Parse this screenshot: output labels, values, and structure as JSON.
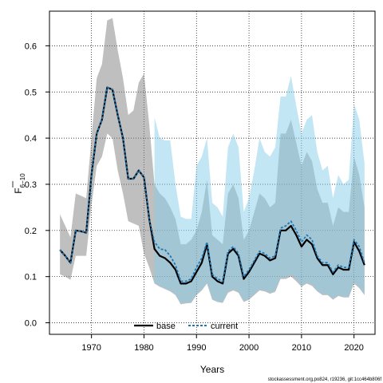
{
  "chart_data": {
    "type": "line",
    "xlabel": "Years",
    "ylabel_main": "F",
    "ylabel_sub": "6−10",
    "xlim": [
      1962,
      2024
    ],
    "ylim": [
      -0.025,
      0.675
    ],
    "x_ticks": [
      1970,
      1980,
      1990,
      2000,
      2010,
      2020
    ],
    "y_ticks": [
      0.0,
      0.1,
      0.2,
      0.3,
      0.4,
      0.5,
      0.6
    ],
    "grid": true,
    "legend": {
      "placement": "bottom-center"
    },
    "footer": "stockassessment.org,po824, r19236, git:1cc464b806f",
    "colors": {
      "base": "#000000",
      "current": "#1f78b4",
      "base_band": "#808080",
      "current_band": "#87ceeb"
    },
    "series": [
      {
        "name": "base",
        "x": [
          1964,
          1965,
          1966,
          1967,
          1968,
          1969,
          1970,
          1971,
          1972,
          1973,
          1974,
          1975,
          1976,
          1977,
          1978,
          1979,
          1980,
          1981,
          1982,
          1983,
          1984,
          1985,
          1986,
          1987,
          1988,
          1989,
          1990,
          1991,
          1992,
          1993,
          1994,
          1995,
          1996,
          1997,
          1998,
          1999,
          2000,
          2001,
          2002,
          2003,
          2004,
          2005,
          2006,
          2007,
          2008,
          2009,
          2010,
          2011,
          2012,
          2013,
          2014,
          2015,
          2016,
          2017,
          2018,
          2019,
          2020,
          2021,
          2022
        ],
        "y": [
          0.158,
          0.145,
          0.13,
          0.2,
          0.198,
          0.195,
          0.32,
          0.41,
          0.44,
          0.51,
          0.505,
          0.45,
          0.4,
          0.312,
          0.312,
          0.33,
          0.315,
          0.225,
          0.16,
          0.145,
          0.14,
          0.13,
          0.115,
          0.085,
          0.085,
          0.09,
          0.11,
          0.13,
          0.17,
          0.1,
          0.09,
          0.085,
          0.15,
          0.16,
          0.145,
          0.095,
          0.11,
          0.13,
          0.15,
          0.145,
          0.135,
          0.14,
          0.2,
          0.2,
          0.21,
          0.19,
          0.165,
          0.18,
          0.17,
          0.14,
          0.125,
          0.125,
          0.105,
          0.12,
          0.115,
          0.115,
          0.175,
          0.155,
          0.125
        ],
        "lower": [
          0.105,
          0.1,
          0.093,
          0.145,
          0.145,
          0.145,
          0.255,
          0.34,
          0.36,
          0.41,
          0.4,
          0.33,
          0.28,
          0.22,
          0.215,
          0.21,
          0.15,
          0.12,
          0.085,
          0.078,
          0.073,
          0.068,
          0.06,
          0.04,
          0.042,
          0.043,
          0.06,
          0.07,
          0.085,
          0.05,
          0.045,
          0.043,
          0.065,
          0.07,
          0.065,
          0.045,
          0.05,
          0.06,
          0.07,
          0.068,
          0.063,
          0.067,
          0.095,
          0.095,
          0.1,
          0.09,
          0.078,
          0.085,
          0.08,
          0.068,
          0.06,
          0.06,
          0.05,
          0.058,
          0.055,
          0.055,
          0.085,
          0.075,
          0.06
        ],
        "upper": [
          0.235,
          0.21,
          0.185,
          0.28,
          0.275,
          0.27,
          0.4,
          0.53,
          0.56,
          0.655,
          0.66,
          0.59,
          0.53,
          0.45,
          0.46,
          0.52,
          0.54,
          0.43,
          0.3,
          0.28,
          0.27,
          0.25,
          0.225,
          0.17,
          0.17,
          0.18,
          0.2,
          0.24,
          0.31,
          0.19,
          0.18,
          0.17,
          0.28,
          0.3,
          0.27,
          0.18,
          0.2,
          0.24,
          0.28,
          0.27,
          0.25,
          0.26,
          0.41,
          0.41,
          0.44,
          0.39,
          0.34,
          0.37,
          0.35,
          0.29,
          0.26,
          0.26,
          0.21,
          0.25,
          0.24,
          0.24,
          0.36,
          0.32,
          0.25
        ]
      },
      {
        "name": "current",
        "x": [
          1964,
          1965,
          1966,
          1967,
          1968,
          1969,
          1970,
          1971,
          1972,
          1973,
          1974,
          1975,
          1976,
          1977,
          1978,
          1979,
          1980,
          1981,
          1982,
          1983,
          1984,
          1985,
          1986,
          1987,
          1988,
          1989,
          1990,
          1991,
          1992,
          1993,
          1994,
          1995,
          1996,
          1997,
          1998,
          1999,
          2000,
          2001,
          2002,
          2003,
          2004,
          2005,
          2006,
          2007,
          2008,
          2009,
          2010,
          2011,
          2012,
          2013,
          2014,
          2015,
          2016,
          2017,
          2018,
          2019,
          2020,
          2021,
          2022
        ],
        "y": [
          0.158,
          0.145,
          0.13,
          0.2,
          0.198,
          0.195,
          0.32,
          0.41,
          0.44,
          0.51,
          0.505,
          0.45,
          0.4,
          0.312,
          0.312,
          0.33,
          0.315,
          0.225,
          0.175,
          0.16,
          0.158,
          0.145,
          0.125,
          0.09,
          0.09,
          0.095,
          0.12,
          0.14,
          0.175,
          0.105,
          0.095,
          0.09,
          0.155,
          0.165,
          0.15,
          0.1,
          0.115,
          0.135,
          0.155,
          0.15,
          0.14,
          0.145,
          0.205,
          0.21,
          0.22,
          0.2,
          0.175,
          0.19,
          0.18,
          0.145,
          0.13,
          0.13,
          0.11,
          0.125,
          0.12,
          0.12,
          0.18,
          0.165,
          0.13
        ],
        "lower": [
          null,
          null,
          null,
          null,
          null,
          null,
          null,
          null,
          null,
          null,
          null,
          null,
          null,
          null,
          null,
          null,
          null,
          null,
          0.085,
          0.08,
          0.075,
          0.07,
          0.062,
          0.042,
          0.044,
          0.045,
          0.062,
          0.072,
          0.088,
          0.052,
          0.047,
          0.045,
          0.068,
          0.073,
          0.068,
          0.047,
          0.052,
          0.062,
          0.073,
          0.07,
          0.065,
          0.07,
          0.098,
          0.098,
          0.104,
          0.094,
          0.08,
          0.088,
          0.083,
          0.07,
          0.062,
          0.062,
          0.052,
          0.06,
          0.057,
          0.057,
          0.088,
          0.078,
          0.062
        ],
        "upper": [
          null,
          null,
          null,
          null,
          null,
          null,
          null,
          null,
          null,
          null,
          null,
          null,
          null,
          null,
          null,
          null,
          null,
          null,
          0.445,
          0.4,
          0.395,
          0.395,
          0.3,
          0.23,
          0.225,
          0.225,
          0.34,
          0.36,
          0.4,
          0.26,
          0.25,
          0.23,
          0.38,
          0.41,
          0.38,
          0.24,
          0.27,
          0.33,
          0.4,
          0.37,
          0.36,
          0.38,
          0.49,
          0.49,
          0.535,
          0.47,
          0.41,
          0.44,
          0.45,
          0.37,
          0.33,
          0.34,
          0.27,
          0.32,
          0.3,
          0.31,
          0.475,
          0.44,
          0.345
        ]
      }
    ]
  }
}
